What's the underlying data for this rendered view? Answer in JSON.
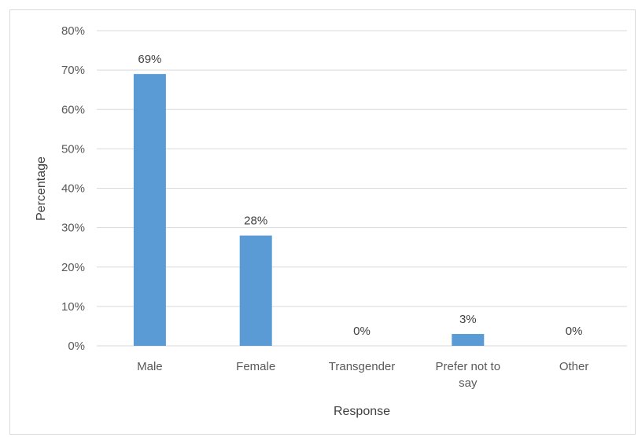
{
  "chart_data": {
    "type": "bar",
    "categories": [
      [
        "Male"
      ],
      [
        "Female"
      ],
      [
        "Transgender"
      ],
      [
        "Prefer not to",
        "say"
      ],
      [
        "Other"
      ]
    ],
    "values": [
      69,
      28,
      0,
      3,
      0
    ],
    "data_labels": [
      "69%",
      "28%",
      "0%",
      "3%",
      "0%"
    ],
    "yticks": [
      "0%",
      "10%",
      "20%",
      "30%",
      "40%",
      "50%",
      "60%",
      "70%",
      "80%"
    ],
    "ylim": [
      0,
      80
    ],
    "xlabel": "Response",
    "ylabel": "Percentage",
    "grid": true,
    "bar_color": "#5B9BD5",
    "grid_color": "#d9d9d9"
  }
}
